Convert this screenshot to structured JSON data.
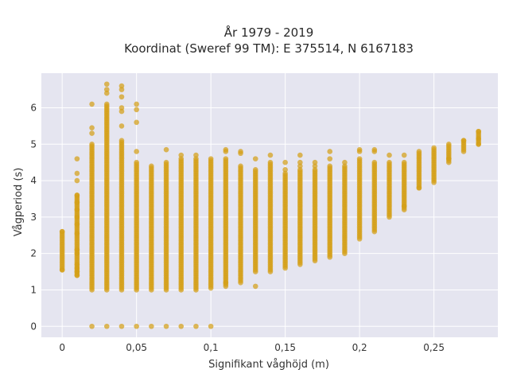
{
  "chart_data": {
    "type": "scatter",
    "title_line1": "År 1979 - 2019",
    "title_line2": "Koordinat (Sweref 99 TM): E 375514, N 6167183",
    "xlabel": "Signifikant våghöjd (m)",
    "ylabel": "Vågperiod (s)",
    "xlim": [
      -0.014,
      0.293
    ],
    "ylim": [
      -0.3,
      6.95
    ],
    "x_ticks": [
      {
        "value": 0,
        "label": "0"
      },
      {
        "value": 0.05,
        "label": "0,05"
      },
      {
        "value": 0.1,
        "label": "0,1"
      },
      {
        "value": 0.15,
        "label": "0,15"
      },
      {
        "value": 0.2,
        "label": "0,2"
      },
      {
        "value": 0.25,
        "label": "0,25"
      }
    ],
    "y_ticks": [
      {
        "value": 0,
        "label": "0"
      },
      {
        "value": 1,
        "label": "1"
      },
      {
        "value": 2,
        "label": "2"
      },
      {
        "value": 3,
        "label": "3"
      },
      {
        "value": 4,
        "label": "4"
      },
      {
        "value": 5,
        "label": "5"
      },
      {
        "value": 6,
        "label": "6"
      }
    ],
    "grid": true,
    "marker_color": "#d4a017",
    "plot_background": "#e5e5f0",
    "columns": [
      {
        "x": 0.0,
        "ymin": 1.55,
        "ymax": 2.6,
        "scatter": [
          1.55,
          2.6
        ]
      },
      {
        "x": 0.01,
        "ymin": 1.4,
        "ymax": 3.6,
        "scatter": [
          1.4,
          1.5,
          1.6,
          1.7,
          2.0,
          2.1,
          2.55,
          2.8,
          3.0,
          3.2,
          3.4,
          3.6,
          4.0,
          4.2,
          4.6
        ]
      },
      {
        "x": 0.02,
        "ymin": 1.0,
        "ymax": 5.0,
        "scatter": [
          0,
          5.3,
          5.45,
          6.1
        ],
        "zero": true
      },
      {
        "x": 0.03,
        "ymin": 1.0,
        "ymax": 6.1,
        "scatter": [
          0,
          6.4,
          6.5,
          6.65
        ],
        "zero": true
      },
      {
        "x": 0.04,
        "ymin": 1.0,
        "ymax": 5.1,
        "scatter": [
          0,
          5.5,
          5.9,
          6.0,
          6.3,
          6.5,
          6.6
        ],
        "zero": true
      },
      {
        "x": 0.05,
        "ymin": 1.0,
        "ymax": 4.5,
        "scatter": [
          0,
          4.8,
          5.6,
          5.95,
          6.1
        ],
        "zero": true
      },
      {
        "x": 0.06,
        "ymin": 1.0,
        "ymax": 4.4,
        "scatter": [
          0
        ],
        "zero": true
      },
      {
        "x": 0.07,
        "ymin": 1.0,
        "ymax": 4.5,
        "scatter": [
          0,
          4.85
        ],
        "zero": true
      },
      {
        "x": 0.08,
        "ymin": 1.0,
        "ymax": 4.6,
        "scatter": [
          0,
          4.7
        ],
        "zero": true
      },
      {
        "x": 0.09,
        "ymin": 1.0,
        "ymax": 4.6,
        "scatter": [
          0,
          4.7
        ],
        "zero": true
      },
      {
        "x": 0.1,
        "ymin": 1.05,
        "ymax": 4.6,
        "scatter": [
          0
        ],
        "zero": true
      },
      {
        "x": 0.11,
        "ymin": 1.1,
        "ymax": 4.6,
        "scatter": [
          1.2,
          4.8,
          4.85
        ]
      },
      {
        "x": 0.12,
        "ymin": 1.2,
        "ymax": 4.4,
        "scatter": [
          4.75,
          4.8
        ]
      },
      {
        "x": 0.13,
        "ymin": 1.5,
        "ymax": 4.3,
        "scatter": [
          1.1,
          4.6
        ]
      },
      {
        "x": 0.14,
        "ymin": 1.5,
        "ymax": 4.5,
        "scatter": [
          4.7
        ]
      },
      {
        "x": 0.15,
        "ymin": 1.6,
        "ymax": 4.2,
        "scatter": [
          4.3,
          4.5
        ]
      },
      {
        "x": 0.16,
        "ymin": 1.7,
        "ymax": 4.3,
        "scatter": [
          4.4,
          4.5,
          4.7
        ]
      },
      {
        "x": 0.17,
        "ymin": 1.8,
        "ymax": 4.3,
        "scatter": [
          4.4,
          4.5
        ]
      },
      {
        "x": 0.18,
        "ymin": 1.9,
        "ymax": 4.4,
        "scatter": [
          4.6,
          4.8
        ]
      },
      {
        "x": 0.19,
        "ymin": 2.0,
        "ymax": 4.4,
        "scatter": [
          4.5
        ]
      },
      {
        "x": 0.2,
        "ymin": 2.4,
        "ymax": 4.6,
        "scatter": [
          4.8,
          4.85
        ]
      },
      {
        "x": 0.21,
        "ymin": 2.6,
        "ymax": 4.5,
        "scatter": [
          4.8,
          4.85
        ]
      },
      {
        "x": 0.22,
        "ymin": 3.0,
        "ymax": 4.5,
        "scatter": [
          4.7
        ]
      },
      {
        "x": 0.23,
        "ymin": 3.2,
        "ymax": 4.5,
        "scatter": [
          4.7,
          3.3
        ]
      },
      {
        "x": 0.24,
        "ymin": 3.8,
        "ymax": 4.8,
        "scatter": [
          3.8
        ]
      },
      {
        "x": 0.25,
        "ymin": 4.0,
        "ymax": 4.9,
        "scatter": [
          3.95
        ]
      },
      {
        "x": 0.26,
        "ymin": 4.5,
        "ymax": 5.0,
        "scatter": [
          4.6
        ]
      },
      {
        "x": 0.27,
        "ymin": 4.8,
        "ymax": 5.1,
        "scatter": [
          5.1
        ]
      },
      {
        "x": 0.28,
        "ymin": 5.0,
        "ymax": 5.35,
        "scatter": [
          5.0,
          5.15,
          5.35
        ]
      }
    ]
  }
}
